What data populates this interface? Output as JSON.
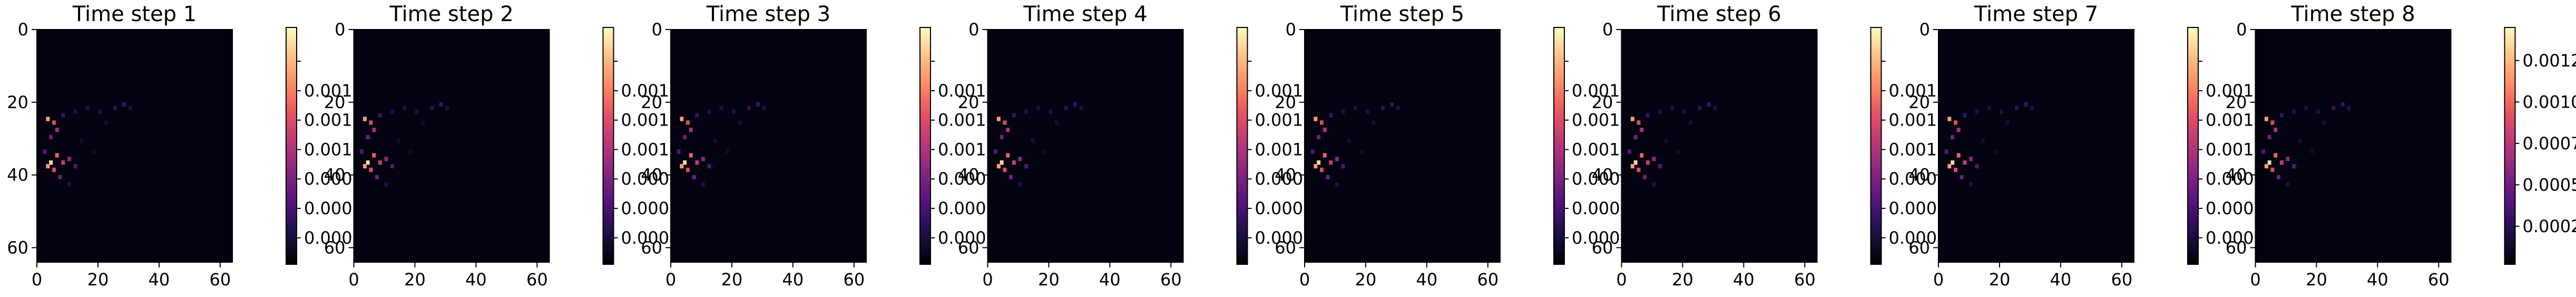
{
  "chart_data": {
    "type": "heatmap",
    "colormap": "magma",
    "grid": false,
    "xlim": [
      0,
      64
    ],
    "ylim": [
      64,
      0
    ],
    "xticks": [
      0,
      20,
      40,
      60
    ],
    "yticks": [
      0,
      20,
      40,
      60
    ],
    "panels": [
      {
        "title": "Time step 1",
        "colorbar_ticks": [
          "0.0002",
          "0.0004",
          "0.0006",
          "0.0008",
          "0.0010",
          "0.0012",
          "0.0014"
        ],
        "colorbar_visible_labels": [
          "0.000",
          "0.000",
          "0.000",
          "0.001",
          "0.001",
          "0.001"
        ]
      },
      {
        "title": "Time step 2",
        "colorbar_ticks": [
          "0.0002",
          "0.0004",
          "0.0006",
          "0.0008",
          "0.0010",
          "0.0012",
          "0.0014"
        ],
        "colorbar_visible_labels": [
          "0.000",
          "0.000",
          "0.000",
          "0.001",
          "0.001",
          "0.001"
        ]
      },
      {
        "title": "Time step 3",
        "colorbar_ticks": [
          "0.0002",
          "0.0004",
          "0.0006",
          "0.0008",
          "0.0010",
          "0.0012",
          "0.0014"
        ],
        "colorbar_visible_labels": [
          "0.000",
          "0.000",
          "0.000",
          "0.001",
          "0.001",
          "0.001"
        ]
      },
      {
        "title": "Time step 4",
        "colorbar_ticks": [
          "0.0002",
          "0.0004",
          "0.0006",
          "0.0008",
          "0.0010",
          "0.0012",
          "0.0014"
        ],
        "colorbar_visible_labels": [
          "0.000",
          "0.000",
          "0.000",
          "0.001",
          "0.001",
          "0.001"
        ]
      },
      {
        "title": "Time step 5",
        "colorbar_ticks": [
          "0.0002",
          "0.0004",
          "0.0006",
          "0.0008",
          "0.0010",
          "0.0012",
          "0.0014"
        ],
        "colorbar_visible_labels": [
          "0.000",
          "0.000",
          "0.000",
          "0.001",
          "0.001",
          "0.001"
        ]
      },
      {
        "title": "Time step 6",
        "colorbar_ticks": [
          "0.0002",
          "0.0004",
          "0.0006",
          "0.0008",
          "0.0010",
          "0.0012",
          "0.0014"
        ],
        "colorbar_visible_labels": [
          "0.000",
          "0.000",
          "0.000",
          "0.001",
          "0.001",
          "0.001"
        ]
      },
      {
        "title": "Time step 7",
        "colorbar_ticks": [
          "0.0002",
          "0.0004",
          "0.0006",
          "0.0008",
          "0.0010",
          "0.0012",
          "0.0014"
        ],
        "colorbar_visible_labels": [
          "0.000",
          "0.000",
          "0.000",
          "0.001",
          "0.001",
          "0.001"
        ]
      },
      {
        "title": "Time step 8",
        "colorbar_ticks": [
          "0.00025",
          "0.00050",
          "0.00075",
          "0.00100",
          "0.00125"
        ],
        "colorbar_visible_labels": [
          "0.00025",
          "0.00050",
          "0.00075",
          "0.00100",
          "0.00125"
        ]
      }
    ],
    "hotspots": [
      {
        "x": 4,
        "y": 36,
        "value": 0.0014
      },
      {
        "x": 3,
        "y": 37,
        "value": 0.0012
      },
      {
        "x": 6,
        "y": 34,
        "value": 0.001
      },
      {
        "x": 8,
        "y": 36,
        "value": 0.0008
      },
      {
        "x": 5,
        "y": 38,
        "value": 0.0009
      },
      {
        "x": 3,
        "y": 24,
        "value": 0.0012
      },
      {
        "x": 5,
        "y": 25,
        "value": 0.0009
      },
      {
        "x": 6,
        "y": 27,
        "value": 0.0007
      },
      {
        "x": 4,
        "y": 29,
        "value": 0.0005
      },
      {
        "x": 10,
        "y": 35,
        "value": 0.0006
      },
      {
        "x": 12,
        "y": 37,
        "value": 0.0004
      },
      {
        "x": 7,
        "y": 40,
        "value": 0.0005
      },
      {
        "x": 2,
        "y": 33,
        "value": 0.0004
      },
      {
        "x": 8,
        "y": 23,
        "value": 0.0003
      },
      {
        "x": 12,
        "y": 22,
        "value": 0.0002
      },
      {
        "x": 16,
        "y": 21,
        "value": 0.0002
      },
      {
        "x": 20,
        "y": 22,
        "value": 0.0002
      },
      {
        "x": 25,
        "y": 21,
        "value": 0.00025
      },
      {
        "x": 28,
        "y": 20,
        "value": 0.0003
      },
      {
        "x": 30,
        "y": 21,
        "value": 0.0002
      },
      {
        "x": 22,
        "y": 25,
        "value": 0.00015
      },
      {
        "x": 14,
        "y": 30,
        "value": 0.00015
      },
      {
        "x": 18,
        "y": 33,
        "value": 0.00012
      },
      {
        "x": 10,
        "y": 42,
        "value": 0.0002
      }
    ]
  }
}
